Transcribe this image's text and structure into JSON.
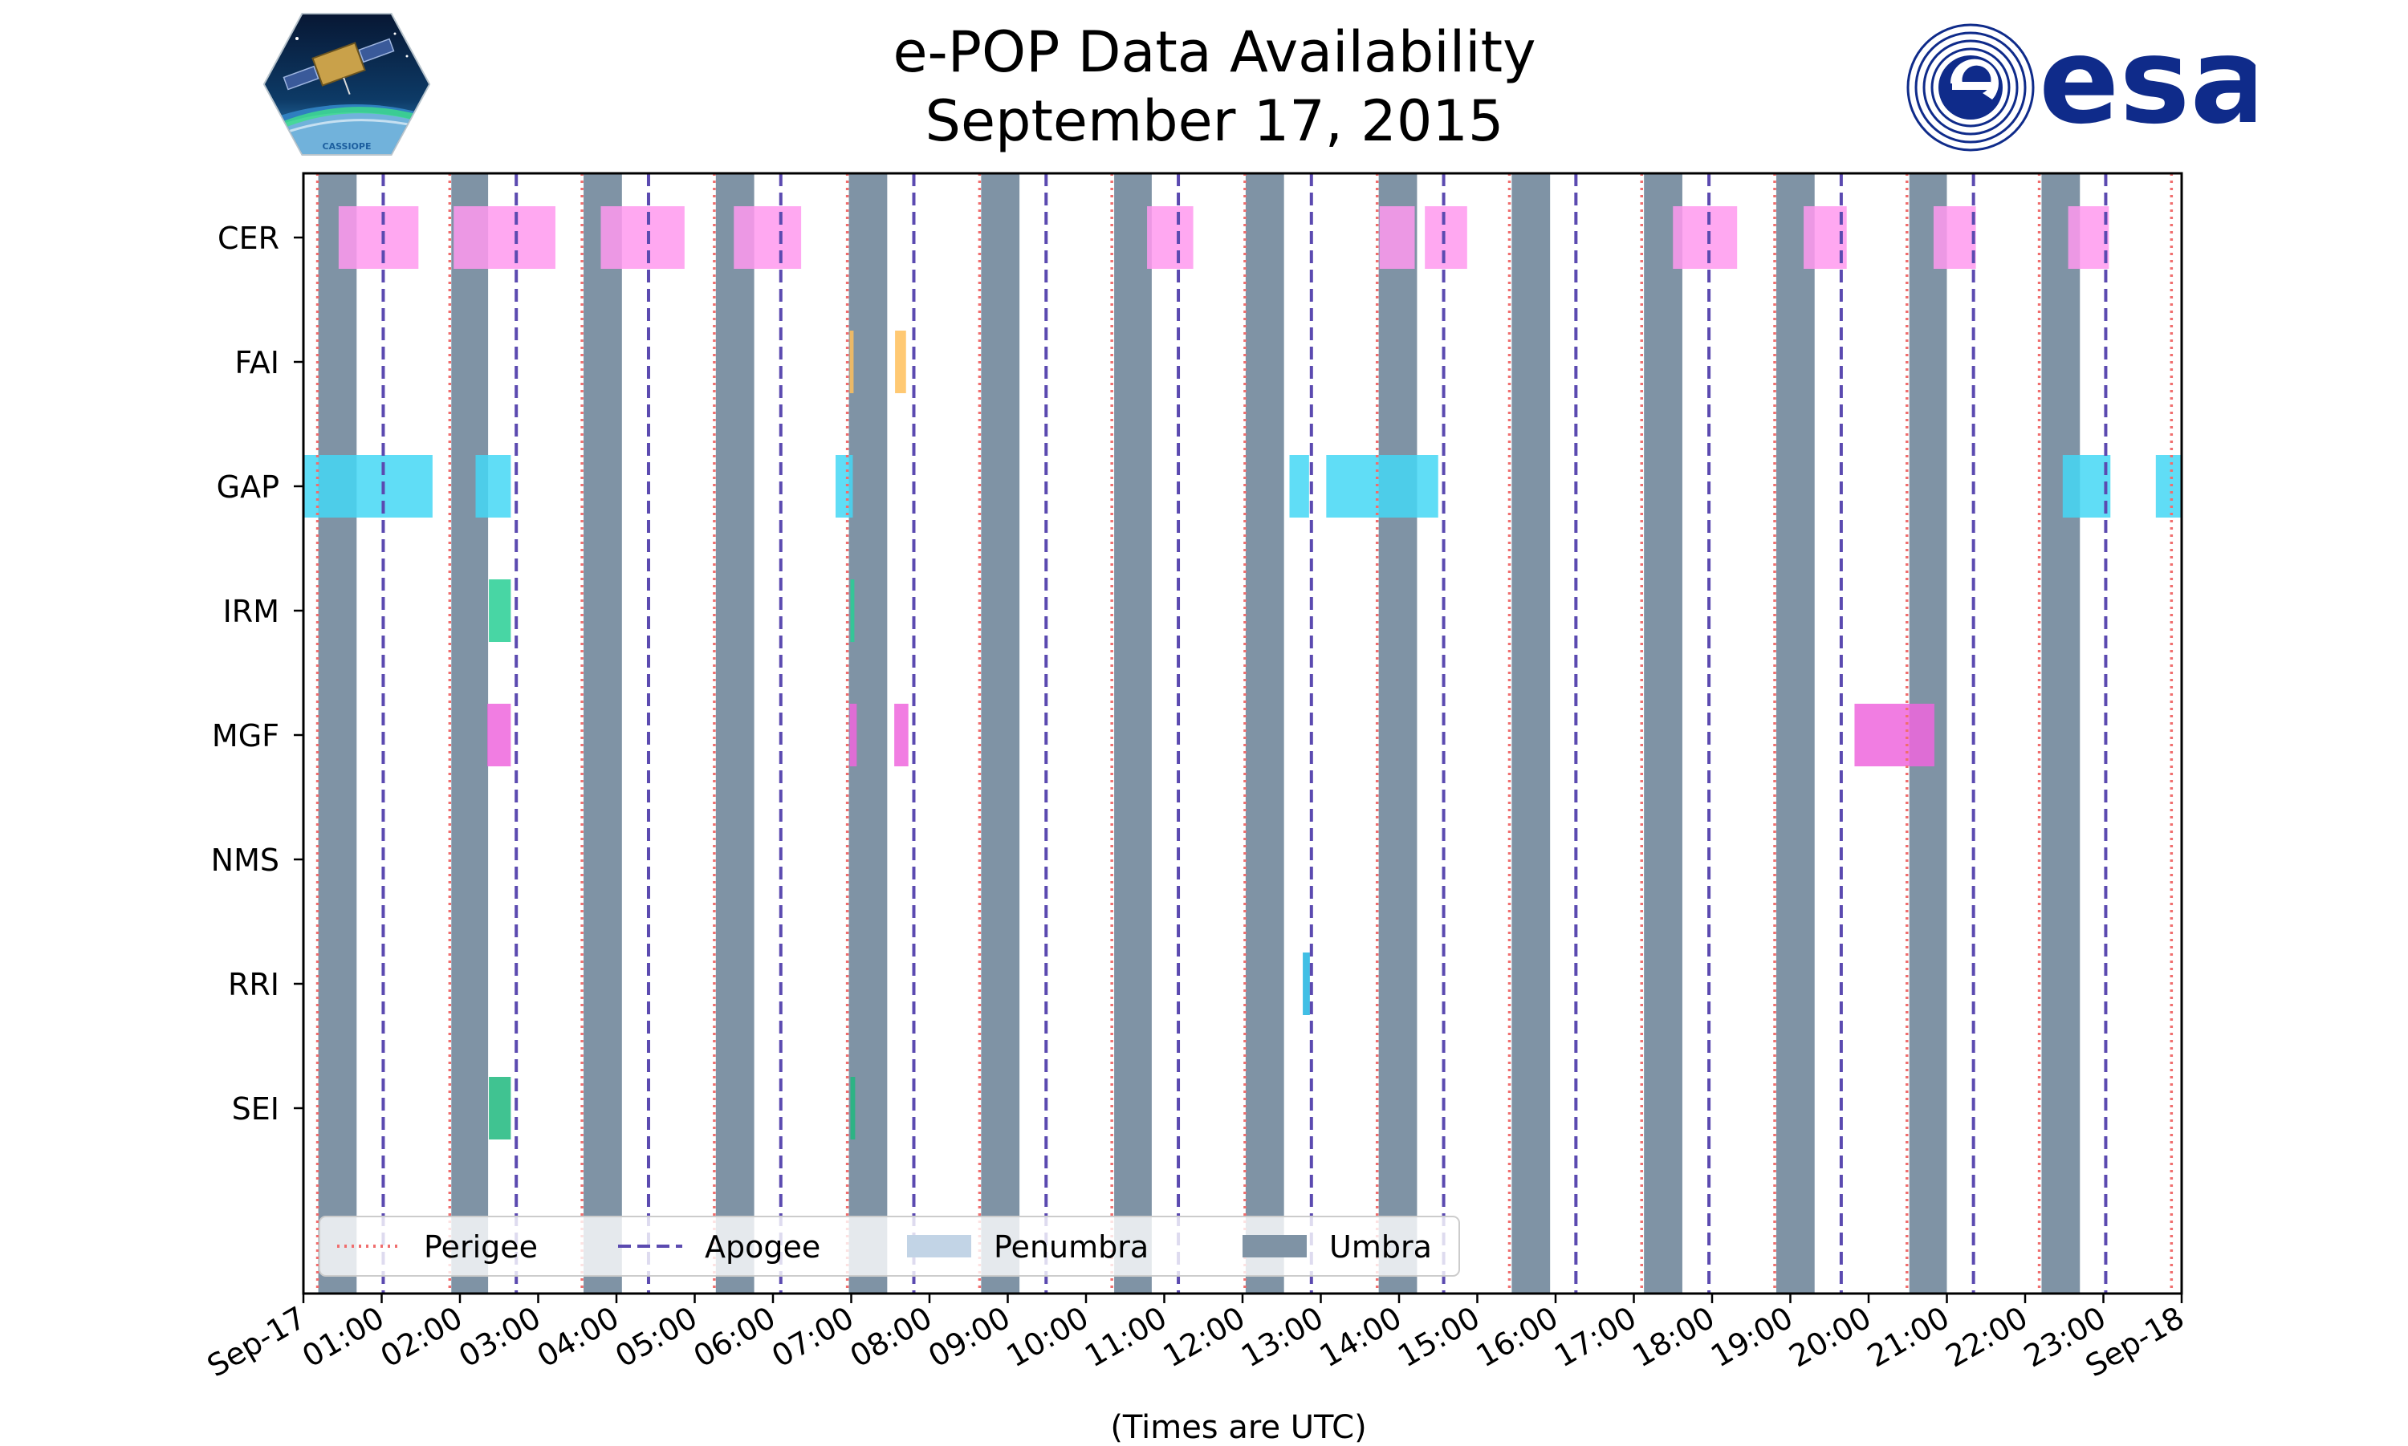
{
  "chart_data": {
    "type": "timeline",
    "title": "e-POP Data Availability",
    "subtitle": "September 17, 2015",
    "xlabel": "(Times are UTC)",
    "xrange_hours": [
      0,
      24
    ],
    "tick_labels": [
      "Sep-17",
      "01:00",
      "02:00",
      "03:00",
      "04:00",
      "05:00",
      "06:00",
      "07:00",
      "08:00",
      "09:00",
      "10:00",
      "11:00",
      "12:00",
      "13:00",
      "14:00",
      "15:00",
      "16:00",
      "17:00",
      "18:00",
      "19:00",
      "20:00",
      "21:00",
      "22:00",
      "23:00",
      "Sep-18"
    ],
    "instruments": [
      "CER",
      "FAI",
      "GAP",
      "IRM",
      "MGF",
      "NMS",
      "RRI",
      "SEI"
    ],
    "colors": {
      "CER": "#ff99ee",
      "FAI": "#ffc05a",
      "GAP": "#44d7f5",
      "IRM": "#28cf94",
      "MGF": "#ee66dd",
      "RRI": "#20b4e0",
      "SEI": "#1fb87e",
      "perigee": "#f06e6e",
      "apogee": "#5b4ab0",
      "penumbra": "#c2d4e6",
      "umbra": "#7f93a5"
    },
    "perigee_hours": [
      0.18,
      1.87,
      3.56,
      5.25,
      6.95,
      8.64,
      10.33,
      12.03,
      13.72,
      15.41,
      17.1,
      18.8,
      20.49,
      22.18,
      23.87
    ],
    "apogee_hours": [
      1.02,
      2.72,
      4.41,
      6.1,
      7.8,
      9.49,
      11.18,
      12.88,
      14.57,
      16.26,
      17.96,
      19.65,
      21.34,
      23.03
    ],
    "umbra_intervals": [
      [
        0.19,
        0.68
      ],
      [
        1.89,
        2.36
      ],
      [
        3.58,
        4.07
      ],
      [
        5.27,
        5.76
      ],
      [
        6.97,
        7.46
      ],
      [
        8.66,
        9.15
      ],
      [
        10.36,
        10.84
      ],
      [
        12.04,
        12.53
      ],
      [
        13.74,
        14.23
      ],
      [
        15.44,
        15.93
      ],
      [
        17.13,
        17.62
      ],
      [
        18.82,
        19.31
      ],
      [
        20.52,
        21.0
      ],
      [
        22.21,
        22.7
      ]
    ],
    "penumbra_intervals": [],
    "data_intervals": {
      "CER": [
        [
          0.45,
          1.47
        ],
        [
          1.92,
          3.22
        ],
        [
          3.8,
          4.87
        ],
        [
          5.5,
          6.36
        ],
        [
          10.78,
          11.37
        ],
        [
          13.75,
          14.2
        ],
        [
          14.33,
          14.87
        ],
        [
          17.5,
          18.32
        ],
        [
          19.17,
          19.72
        ],
        [
          20.83,
          21.37
        ],
        [
          22.55,
          23.07
        ]
      ],
      "FAI": [
        [
          6.98,
          7.03
        ],
        [
          7.56,
          7.7
        ]
      ],
      "GAP": [
        [
          0.0,
          1.65
        ],
        [
          2.2,
          2.65
        ],
        [
          6.8,
          7.02
        ],
        [
          12.6,
          12.85
        ],
        [
          13.07,
          14.5
        ],
        [
          22.48,
          23.09
        ],
        [
          23.67,
          24.0
        ]
      ],
      "IRM": [
        [
          2.37,
          2.65
        ],
        [
          6.99,
          7.04
        ]
      ],
      "MGF": [
        [
          2.35,
          2.65
        ],
        [
          6.98,
          7.07
        ],
        [
          7.55,
          7.73
        ],
        [
          19.82,
          20.84
        ]
      ],
      "NMS": [],
      "RRI": [
        [
          12.77,
          12.86
        ]
      ],
      "SEI": [
        [
          2.37,
          2.65
        ],
        [
          6.99,
          7.05
        ]
      ]
    },
    "legend": {
      "entries": [
        "Perigee",
        "Apogee",
        "Penumbra",
        "Umbra"
      ],
      "placement": "lower-left"
    }
  },
  "logos": {
    "mission_icon": "cassiope-satellite-logo",
    "mission_text": "CASSIOPE",
    "agency_icon": "esa-logo",
    "agency_text": "esa"
  }
}
